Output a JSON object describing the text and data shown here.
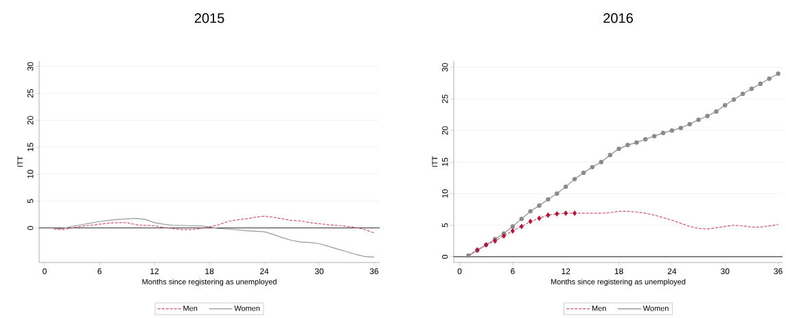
{
  "chart_data": [
    {
      "type": "line",
      "title": "2015",
      "xlabel": "Months since registering as unemployed",
      "ylabel": "ITT",
      "x": [
        1,
        2,
        3,
        4,
        5,
        6,
        7,
        8,
        9,
        10,
        11,
        12,
        13,
        14,
        15,
        16,
        17,
        18,
        19,
        20,
        21,
        22,
        23,
        24,
        25,
        26,
        27,
        28,
        29,
        30,
        31,
        32,
        33,
        34,
        35,
        36
      ],
      "xlim": [
        -0.6,
        36.6
      ],
      "ylim": [
        -6.4,
        31
      ],
      "xticks": [
        0,
        6,
        12,
        18,
        24,
        30,
        36
      ],
      "yticks": [
        0,
        5,
        10,
        15,
        20,
        25,
        30
      ],
      "grid": "y",
      "legend": "bottom",
      "ref_lines": [
        {
          "axis": "y",
          "value": 0,
          "color": "#000000"
        }
      ],
      "series": [
        {
          "name": "Men",
          "color": "#d6506f",
          "line_style": "dashed",
          "marker": "none",
          "values": [
            -0.2,
            -0.3,
            0.0,
            0.3,
            0.5,
            0.7,
            0.9,
            1.0,
            1.0,
            0.6,
            0.5,
            0.4,
            0.1,
            -0.1,
            -0.3,
            -0.3,
            -0.1,
            0.2,
            0.6,
            1.2,
            1.5,
            1.7,
            2.0,
            2.2,
            2.0,
            1.7,
            1.4,
            1.3,
            1.0,
            0.8,
            0.6,
            0.5,
            0.3,
            0.1,
            -0.3,
            -0.9
          ]
        },
        {
          "name": "Women",
          "color": "#999999",
          "line_style": "solid",
          "marker": "none",
          "values": [
            -0.2,
            -0.1,
            0.3,
            0.6,
            0.9,
            1.2,
            1.4,
            1.6,
            1.7,
            1.8,
            1.6,
            1.0,
            0.7,
            0.5,
            0.5,
            0.4,
            0.4,
            0.2,
            -0.1,
            -0.2,
            -0.3,
            -0.5,
            -0.6,
            -0.7,
            -1.2,
            -1.8,
            -2.3,
            -2.6,
            -2.7,
            -2.9,
            -3.4,
            -3.9,
            -4.4,
            -4.9,
            -5.3,
            -5.4
          ]
        }
      ]
    },
    {
      "type": "line",
      "title": "2016",
      "xlabel": "Months since registering as unemployed",
      "ylabel": "ITT",
      "x": [
        1,
        2,
        3,
        4,
        5,
        6,
        7,
        8,
        9,
        10,
        11,
        12,
        13,
        14,
        15,
        16,
        17,
        18,
        19,
        20,
        21,
        22,
        23,
        24,
        25,
        26,
        27,
        28,
        29,
        30,
        31,
        32,
        33,
        34,
        35,
        36
      ],
      "xlim": [
        -0.66,
        36.5
      ],
      "ylim": [
        -0.9,
        31
      ],
      "xticks": [
        0,
        6,
        12,
        18,
        24,
        30,
        36
      ],
      "yticks": [
        0,
        5,
        10,
        15,
        20,
        25,
        30
      ],
      "grid": "y",
      "legend": "bottom",
      "ref_lines": [
        {
          "axis": "y",
          "value": 0,
          "color": "#000000"
        }
      ],
      "series": [
        {
          "name": "Men",
          "color": "#d6506f",
          "line_style": "dashed",
          "marker": "none",
          "values": [
            0.2,
            1.1,
            1.9,
            2.5,
            3.3,
            4.1,
            4.8,
            5.6,
            6.1,
            6.6,
            6.8,
            6.9,
            6.9,
            6.9,
            6.9,
            6.9,
            7.0,
            7.2,
            7.2,
            7.1,
            6.9,
            6.6,
            6.2,
            5.8,
            5.3,
            4.8,
            4.5,
            4.4,
            4.6,
            4.8,
            5.0,
            4.9,
            4.7,
            4.7,
            4.9,
            5.1
          ]
        },
        {
          "name": "Women",
          "color": "#8a8a8a",
          "line_style": "solid",
          "marker": "circle",
          "values": [
            0.2,
            1.0,
            1.9,
            2.8,
            3.7,
            4.8,
            6.0,
            7.2,
            8.1,
            9.1,
            10.0,
            11.1,
            12.3,
            13.3,
            14.2,
            15.0,
            16.1,
            17.1,
            17.7,
            18.1,
            18.6,
            19.1,
            19.6,
            20.0,
            20.4,
            21.0,
            21.7,
            22.3,
            23.0,
            24.0,
            24.9,
            25.8,
            26.6,
            27.4,
            28.2,
            29.0
          ]
        },
        {
          "type": "scatter",
          "color": "#b5123a",
          "marker": "diamond",
          "x": [
            2,
            3,
            4,
            5,
            6,
            7,
            8,
            9,
            10,
            11,
            12,
            13
          ],
          "values": [
            1.1,
            1.9,
            2.5,
            3.3,
            4.1,
            4.8,
            5.6,
            6.1,
            6.6,
            6.8,
            6.9,
            6.9
          ]
        }
      ]
    }
  ]
}
